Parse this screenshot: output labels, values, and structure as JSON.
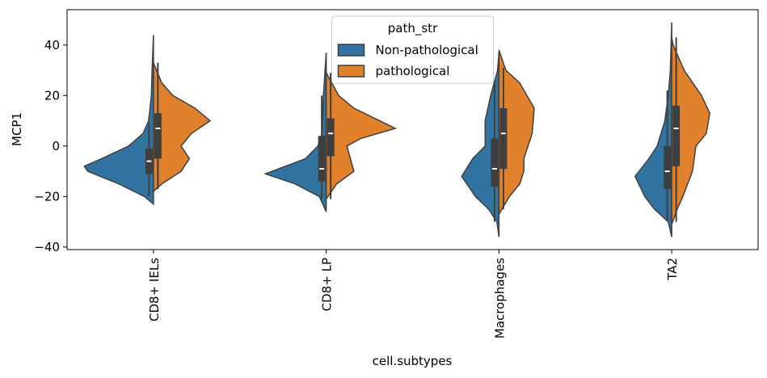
{
  "chart_data": {
    "type": "violin",
    "split": true,
    "xlabel": "cell.subtypes",
    "ylabel": "MCP1",
    "categories": [
      "CD8+ IELs",
      "CD8+ LP",
      "Macrophages",
      "TA2"
    ],
    "ylim": [
      -41,
      54
    ],
    "yticks": [
      {
        "value": -40,
        "label": "−40"
      },
      {
        "value": -20,
        "label": "−20"
      },
      0,
      20,
      40
    ],
    "legend_title": "path_str",
    "legend_position": "upper center",
    "series": [
      {
        "name": "Non-pathological",
        "color": "#3274a1",
        "box": [
          {
            "whisker_low": -20,
            "q1": -11,
            "median": -6,
            "q3": -1,
            "whisker_high": 9
          },
          {
            "whisker_low": -21,
            "q1": -14,
            "median": -9,
            "q3": 4,
            "whisker_high": 20
          },
          {
            "whisker_low": -30,
            "q1": -16,
            "median": -9,
            "q3": 3,
            "whisker_high": 26
          },
          {
            "whisker_low": -30,
            "q1": -17,
            "median": -10,
            "q3": 0,
            "whisker_high": 22
          }
        ],
        "density_y": [
          [
            -23,
            -20,
            -15,
            -10,
            -8,
            -5,
            0,
            5,
            10,
            20,
            30,
            44
          ],
          [
            -26,
            -20,
            -15,
            -11,
            -5,
            0,
            5,
            20,
            37
          ],
          [
            -36,
            -30,
            -25,
            -20,
            -12,
            -5,
            0,
            10,
            20,
            30,
            37
          ],
          [
            -36,
            -30,
            -25,
            -20,
            -12,
            -5,
            0,
            10,
            20,
            30,
            49
          ]
        ],
        "density": [
          [
            0,
            0.13,
            0.5,
            0.95,
            1.0,
            0.75,
            0.36,
            0.15,
            0.07,
            0.03,
            0.02,
            0
          ],
          [
            0,
            0.1,
            0.45,
            0.88,
            0.3,
            0.12,
            0.06,
            0.04,
            0
          ],
          [
            0,
            0.03,
            0.15,
            0.34,
            0.54,
            0.38,
            0.2,
            0.2,
            0.12,
            0.02,
            0
          ],
          [
            0,
            0.05,
            0.25,
            0.39,
            0.53,
            0.33,
            0.21,
            0.1,
            0.05,
            0.02,
            0
          ]
        ]
      },
      {
        "name": "pathological",
        "color": "#e1812c",
        "box": [
          {
            "whisker_low": -17,
            "q1": -5,
            "median": 7,
            "q3": 13,
            "whisker_high": 33
          },
          {
            "whisker_low": -21,
            "q1": -4,
            "median": 5,
            "q3": 11,
            "whisker_high": 29
          },
          {
            "whisker_low": -25,
            "q1": -9,
            "median": 5,
            "q3": 15,
            "whisker_high": 31
          },
          {
            "whisker_low": -30,
            "q1": -8,
            "median": 7,
            "q3": 16,
            "whisker_high": 43
          }
        ],
        "density_y": [
          [
            -18,
            -15,
            -10,
            -5,
            0,
            5,
            10,
            15,
            20,
            25,
            33
          ],
          [
            -21,
            -15,
            -10,
            -5,
            0,
            3,
            7,
            15,
            20,
            29
          ],
          [
            -27,
            -20,
            -15,
            -10,
            -5,
            5,
            15,
            25,
            30,
            38
          ],
          [
            -31,
            -25,
            -20,
            -10,
            0,
            5,
            13,
            20,
            30,
            40,
            43
          ]
        ],
        "density": [
          [
            0,
            0.12,
            0.4,
            0.52,
            0.4,
            0.55,
            0.82,
            0.6,
            0.28,
            0.12,
            0
          ],
          [
            0,
            0.15,
            0.4,
            0.35,
            0.3,
            0.5,
            1.0,
            0.4,
            0.18,
            0
          ],
          [
            0,
            0.15,
            0.3,
            0.36,
            0.36,
            0.48,
            0.51,
            0.3,
            0.1,
            0
          ],
          [
            0,
            0.08,
            0.16,
            0.3,
            0.35,
            0.5,
            0.55,
            0.43,
            0.18,
            0.02,
            0
          ]
        ]
      }
    ]
  }
}
